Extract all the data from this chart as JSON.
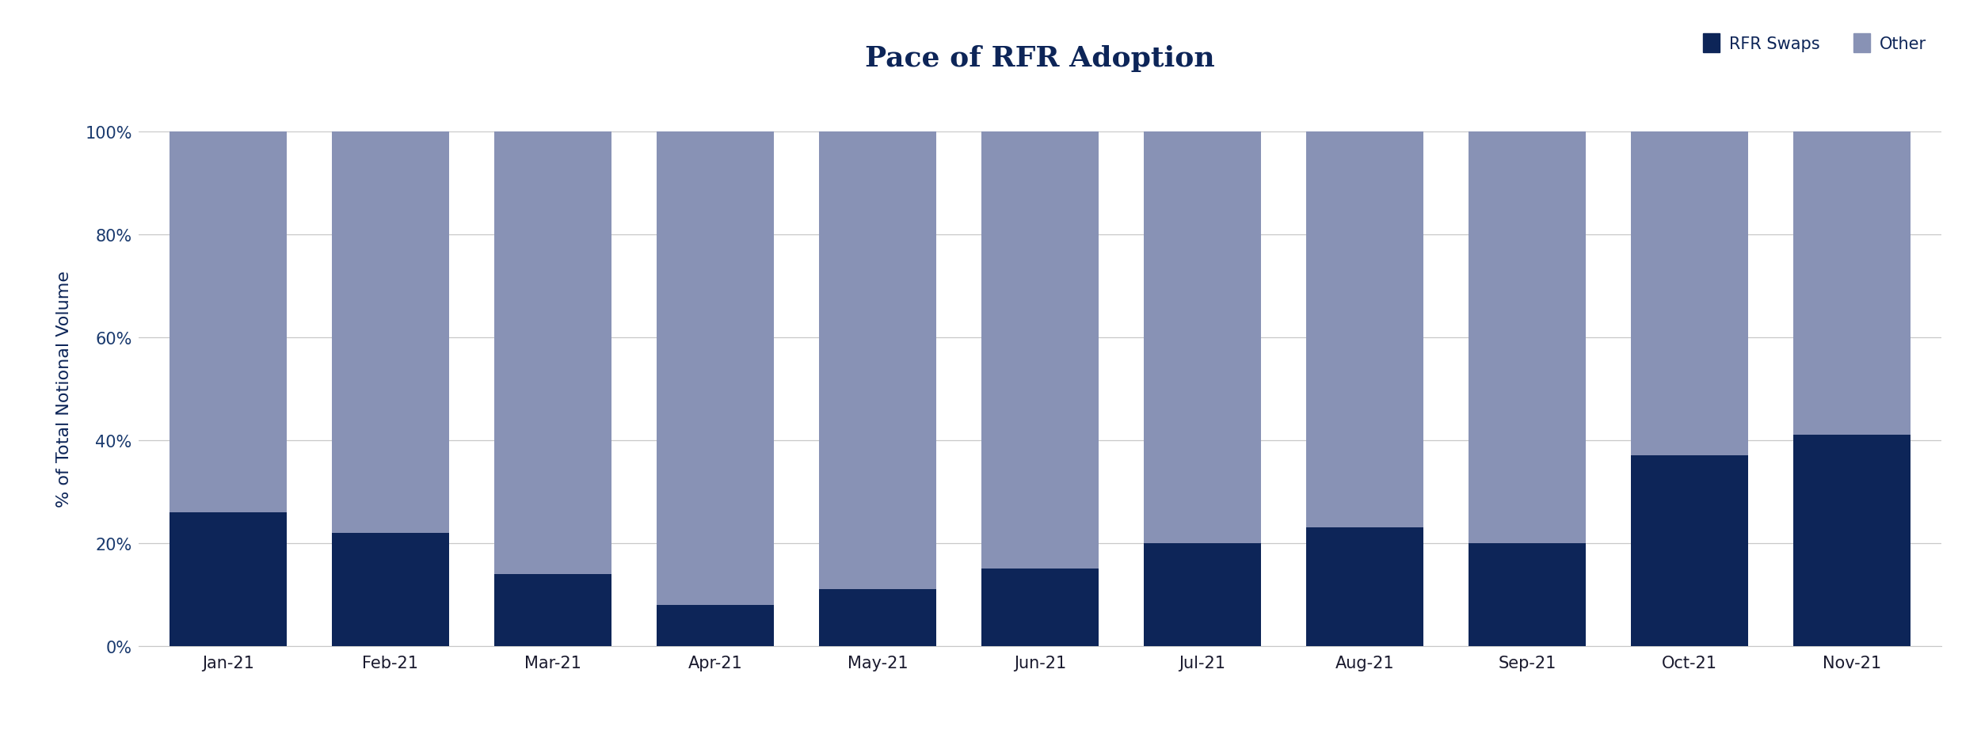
{
  "categories": [
    "Jan-21",
    "Feb-21",
    "Mar-21",
    "Apr-21",
    "May-21",
    "Jun-21",
    "Jul-21",
    "Aug-21",
    "Sep-21",
    "Oct-21",
    "Nov-21"
  ],
  "rfr_swaps": [
    26,
    22,
    14,
    8,
    11,
    15,
    20,
    23,
    20,
    37,
    41
  ],
  "other": [
    74,
    78,
    86,
    92,
    89,
    85,
    80,
    77,
    80,
    63,
    59
  ],
  "rfr_color": "#0d2558",
  "other_color": "#8892b5",
  "title": "Pace of RFR Adoption",
  "ylabel": "% of Total Notional Volume",
  "title_fontsize": 26,
  "label_fontsize": 16,
  "tick_fontsize": 15,
  "legend_fontsize": 15,
  "background_color": "#ffffff",
  "grid_color": "#c8c8c8",
  "yticks": [
    0,
    20,
    40,
    60,
    80,
    100
  ],
  "ytick_labels": [
    "0%",
    "20%",
    "40%",
    "60%",
    "80%",
    "100%"
  ],
  "bar_width": 0.72,
  "legend_labels": [
    "RFR Swaps",
    "Other"
  ]
}
